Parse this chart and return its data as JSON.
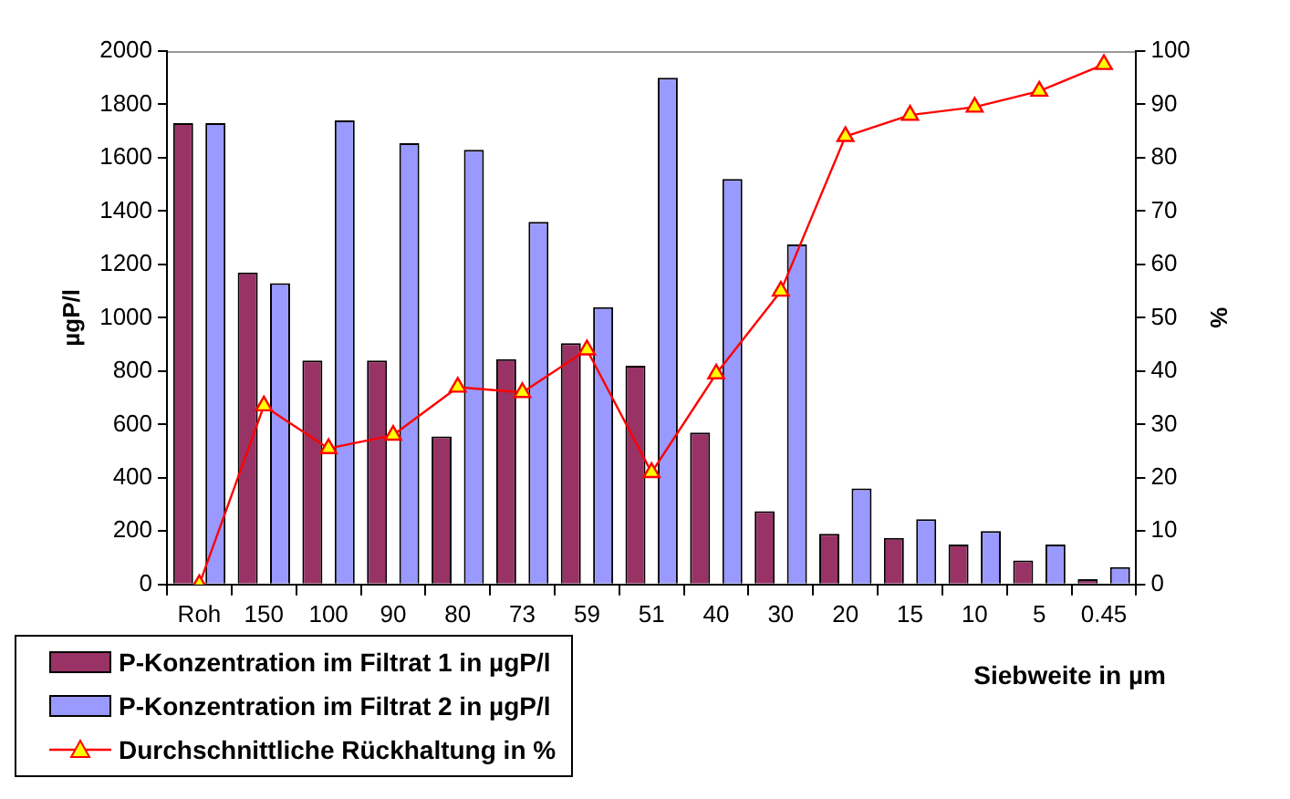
{
  "chart_data": {
    "type": "bar",
    "xlabel": "Siebweite in µm",
    "ylabel": "µgP/l",
    "y2label": "%",
    "categories": [
      "Roh",
      "150",
      "100",
      "90",
      "80",
      "73",
      "59",
      "51",
      "40",
      "30",
      "20",
      "15",
      "10",
      "5",
      "0.45"
    ],
    "series": [
      {
        "name": "P-Konzentration im Filtrat 1 in µgP/l",
        "color": "#993366",
        "values": [
          1730,
          1170,
          840,
          840,
          555,
          845,
          905,
          820,
          570,
          275,
          190,
          175,
          150,
          90,
          20
        ]
      },
      {
        "name": "P-Konzentration im Filtrat 2 in µgP/l",
        "color": "#9999ff",
        "values": [
          1730,
          1130,
          1740,
          1655,
          1630,
          1360,
          1040,
          1900,
          1520,
          1275,
          360,
          245,
          200,
          150,
          65
        ]
      },
      {
        "name": "Durchschnittliche Rückhaltung in %",
        "type": "line",
        "axis": "y2",
        "color": "#ff0000",
        "values": [
          0,
          33.5,
          25.5,
          28,
          37,
          36,
          44,
          21,
          39.5,
          55,
          84,
          88,
          89.5,
          92.5,
          97.5
        ]
      }
    ],
    "ylim": [
      0,
      2000
    ],
    "yticks": [
      0,
      200,
      400,
      600,
      800,
      1000,
      1200,
      1400,
      1600,
      1800,
      2000
    ],
    "y2lim": [
      0,
      100
    ],
    "y2ticks": [
      0,
      10,
      20,
      30,
      40,
      50,
      60,
      70,
      80,
      90,
      100
    ],
    "grid": false,
    "legend": "bottom left",
    "marker": "triangle",
    "line_style": "solid"
  }
}
